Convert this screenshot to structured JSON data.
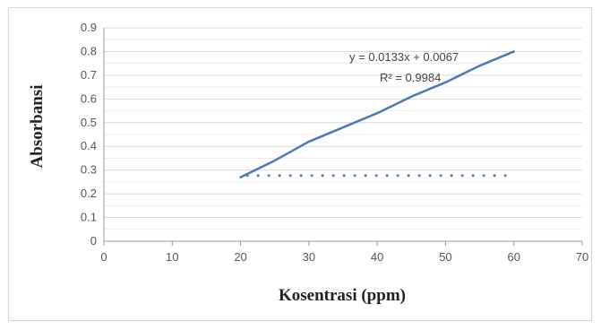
{
  "chart_data": {
    "type": "line",
    "title": "",
    "xlabel": "Kosentrasi (ppm)",
    "ylabel": "Absorbansi",
    "xlim": [
      0,
      70
    ],
    "ylim": [
      0,
      0.9
    ],
    "x_ticks": [
      0,
      10,
      20,
      30,
      40,
      50,
      60,
      70
    ],
    "y_ticks": [
      0,
      0.1,
      0.2,
      0.3,
      0.4,
      0.5,
      0.6,
      0.7,
      0.8,
      0.9
    ],
    "y_tick_labels": [
      "0",
      "0.1",
      "0.2",
      "0.3",
      "0.4",
      "0.5",
      "0.6",
      "0.7",
      "0.8",
      "0.9"
    ],
    "grid": true,
    "series": [
      {
        "style": "solid",
        "color": "#4a7ab8",
        "x": [
          20,
          25,
          30,
          35,
          40,
          45,
          50,
          55,
          60
        ],
        "y": [
          0.27,
          0.34,
          0.42,
          0.48,
          0.54,
          0.61,
          0.67,
          0.74,
          0.8
        ]
      },
      {
        "style": "dotted",
        "color": "#4a7ab8",
        "x": [
          21,
          60
        ],
        "y": [
          0.277,
          0.277
        ]
      }
    ],
    "annotations": {
      "equation": "y = 0.0133x + 0.0067",
      "r_squared": "R² = 0.9984"
    }
  }
}
